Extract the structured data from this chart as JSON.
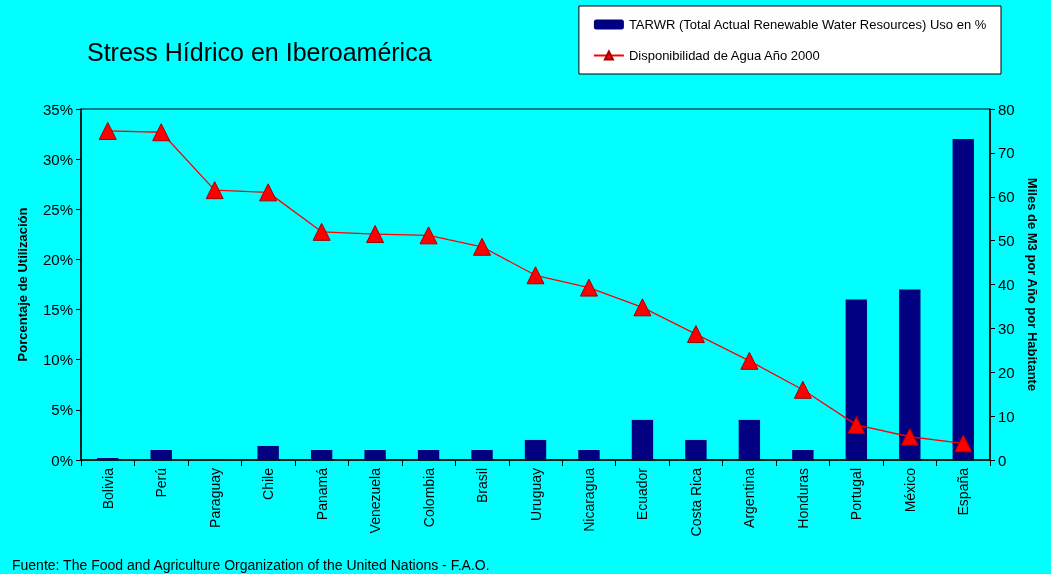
{
  "chart_data": {
    "type": "bar",
    "title": "Stress Hídrico en Iberoamérica",
    "ylabel": "Porcentaje de Utilización",
    "y2label": "Miles de M3 por Año por Habitante",
    "annotations": [
      "Fuente: The Food and Agriculture Organization of the United Nations - F.A.O."
    ],
    "categories": [
      "Bolivia",
      "Perú",
      "Paraguay",
      "Chile",
      "Panamá",
      "Venezuela",
      "Colombia",
      "Brasil",
      "Uruguay",
      "Nicaragua",
      "Ecuador",
      "Costa Rica",
      "Argentina",
      "Honduras",
      "Portugal",
      "México",
      "España"
    ],
    "series": [
      {
        "name": "TARWR (Total Actual Renewable Water Resources) Uso en %",
        "color": "#000080",
        "values": [
          0.2,
          1,
          0.1,
          1.4,
          1,
          1,
          1,
          1,
          2,
          1,
          4,
          2,
          4,
          1,
          16,
          17,
          32
        ]
      },
      {
        "name": "Disponibilidad de Agua Año 2000",
        "type": "line",
        "axis": "y2",
        "color": "#ff0000",
        "marker": "triangle",
        "values": [
          75,
          74.7,
          61.5,
          61,
          52,
          51.5,
          51.2,
          48.6,
          42.1,
          39.3,
          34.8,
          28.7,
          22.6,
          16,
          8,
          5.3,
          3.8
        ]
      }
    ],
    "ylim": [
      0,
      35
    ],
    "yticks": [
      {
        "value": 0,
        "label": "0%"
      },
      {
        "value": 5,
        "label": "5%"
      },
      {
        "value": 10,
        "label": "10%"
      },
      {
        "value": 15,
        "label": "15%"
      },
      {
        "value": 20,
        "label": "20%"
      },
      {
        "value": 25,
        "label": "25%"
      },
      {
        "value": 30,
        "label": "30%"
      },
      {
        "value": 35,
        "label": "35%"
      }
    ],
    "y2lim": [
      0,
      80
    ],
    "y2ticks": [
      0,
      10,
      20,
      30,
      40,
      50,
      60,
      70,
      80
    ],
    "legend": "top right",
    "grid": false
  }
}
